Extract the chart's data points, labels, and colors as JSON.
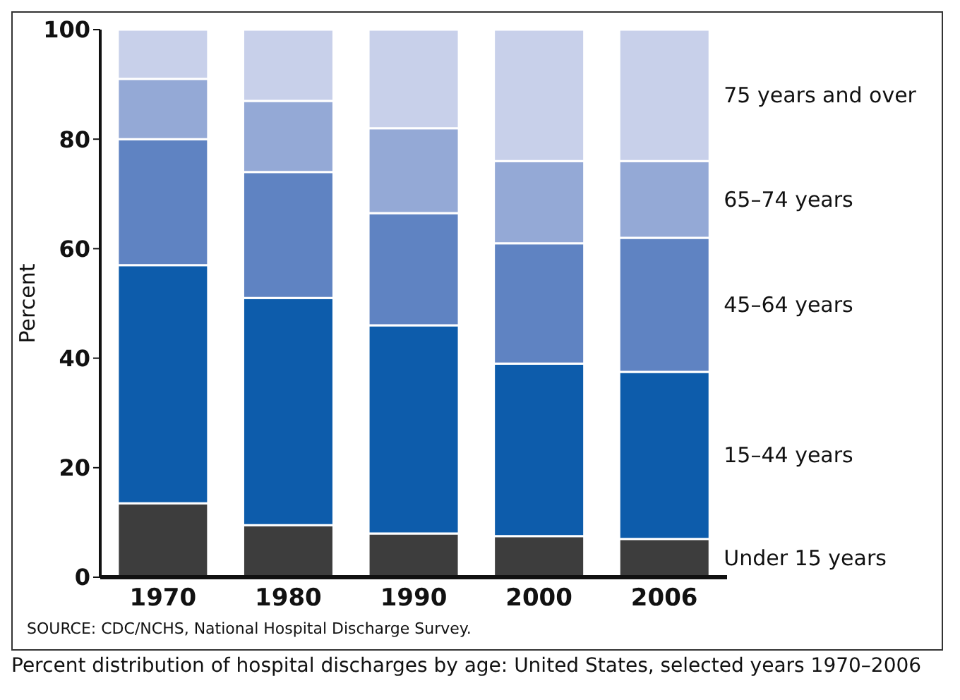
{
  "chart_data": {
    "type": "bar",
    "stacked": true,
    "ylabel": "Percent",
    "categories": [
      "1970",
      "1980",
      "1990",
      "2000",
      "2006"
    ],
    "series": [
      {
        "name": "Under 15 years",
        "color": "#3d3d3d",
        "values": [
          13.5,
          9.5,
          8,
          7.5,
          7
        ]
      },
      {
        "name": "15–44 years",
        "color": "#0d5cab",
        "values": [
          43.5,
          41.5,
          38,
          31.5,
          30.5
        ]
      },
      {
        "name": "45–64 years",
        "color": "#5f83c2",
        "values": [
          23,
          23,
          20.5,
          22,
          24.5
        ]
      },
      {
        "name": "65–74 years",
        "color": "#94a9d6",
        "values": [
          11,
          13,
          15.5,
          15,
          14
        ]
      },
      {
        "name": "75 years and over",
        "color": "#c8d0ea",
        "values": [
          9,
          13,
          18,
          24,
          24
        ]
      }
    ],
    "ylim": [
      0,
      100
    ],
    "yticks": [
      0,
      20,
      40,
      60,
      80,
      100
    ],
    "grid": false,
    "annotations": [
      "SOURCE: CDC/NCHS, National Hospital Discharge Survey.",
      "Percent distribution of hospital discharges by age: United States, selected years 1970–2006"
    ]
  }
}
